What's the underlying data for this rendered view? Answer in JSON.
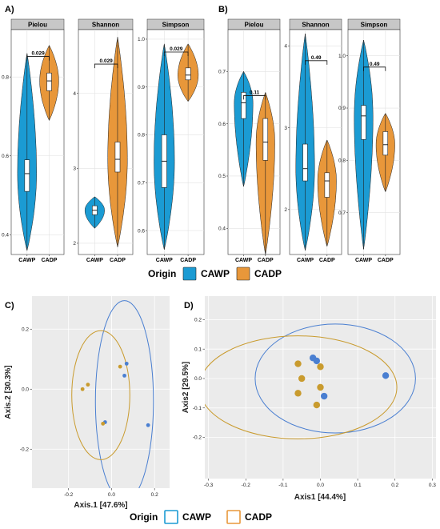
{
  "colors": {
    "CAWP": "#1b9bd3",
    "CADP": "#e8973a",
    "CAWP_ellipse": "#4a7fd1",
    "CADP_ellipse": "#c99b2e",
    "panel_bg": "#ebebeb",
    "strip_bg": "#c7c7c7"
  },
  "legend": {
    "title": "Origin",
    "items": [
      "CAWP",
      "CADP"
    ]
  },
  "chart_data": [
    {
      "id": "A",
      "label": "A)",
      "type": "violin",
      "categories": [
        "CAWP",
        "CADP"
      ],
      "facets": [
        {
          "strip": "Pielou",
          "ylim": [
            0.35,
            0.92
          ],
          "yticks": [
            0.4,
            0.6,
            0.8
          ],
          "ytick_labels": [
            "0.4",
            "0.6",
            "0.8"
          ],
          "groups": [
            {
              "name": "CAWP",
              "min": 0.36,
              "q1": 0.51,
              "median": 0.555,
              "q3": 0.59,
              "max": 0.86
            },
            {
              "name": "CADP",
              "min": 0.69,
              "q1": 0.765,
              "median": 0.79,
              "q3": 0.81,
              "max": 0.88
            }
          ],
          "pvalue": "0.029"
        },
        {
          "strip": "Shannon",
          "ylim": [
            1.85,
            4.85
          ],
          "yticks": [
            2,
            3,
            4
          ],
          "ytick_labels": [
            "2",
            "3",
            "4"
          ],
          "groups": [
            {
              "name": "CAWP",
              "min": 2.2,
              "q1": 2.38,
              "median": 2.44,
              "q3": 2.5,
              "max": 2.62
            },
            {
              "name": "CADP",
              "min": 1.95,
              "q1": 2.95,
              "median": 3.12,
              "q3": 3.35,
              "max": 4.75
            }
          ],
          "pvalue": "0.029"
        },
        {
          "strip": "Simpson",
          "ylim": [
            0.55,
            1.02
          ],
          "yticks": [
            0.6,
            0.7,
            0.8,
            0.9,
            1.0
          ],
          "ytick_labels": [
            "0.6",
            "0.7",
            "0.8",
            "0.9",
            "1.0"
          ],
          "groups": [
            {
              "name": "CAWP",
              "min": 0.56,
              "q1": 0.69,
              "median": 0.745,
              "q3": 0.8,
              "max": 0.99
            },
            {
              "name": "CADP",
              "min": 0.87,
              "q1": 0.915,
              "median": 0.925,
              "q3": 0.94,
              "max": 0.99
            }
          ],
          "pvalue": "0.029"
        }
      ]
    },
    {
      "id": "B",
      "label": "B)",
      "type": "violin",
      "categories": [
        "CAWP",
        "CADP"
      ],
      "facets": [
        {
          "strip": "Pielou",
          "ylim": [
            0.35,
            0.78
          ],
          "yticks": [
            0.4,
            0.5,
            0.6,
            0.7
          ],
          "ytick_labels": [
            "0.4",
            "0.5",
            "0.6",
            "0.7"
          ],
          "groups": [
            {
              "name": "CAWP",
              "min": 0.48,
              "q1": 0.61,
              "median": 0.64,
              "q3": 0.66,
              "max": 0.7
            },
            {
              "name": "CADP",
              "min": 0.35,
              "q1": 0.53,
              "median": 0.565,
              "q3": 0.61,
              "max": 0.66
            }
          ],
          "pvalue": "0.11"
        },
        {
          "strip": "Shannon",
          "ylim": [
            1.45,
            4.2
          ],
          "yticks": [
            2,
            3,
            4
          ],
          "ytick_labels": [
            "2",
            "3",
            "4"
          ],
          "groups": [
            {
              "name": "CAWP",
              "min": 1.5,
              "q1": 2.35,
              "median": 2.5,
              "q3": 2.8,
              "max": 4.15
            },
            {
              "name": "CADP",
              "min": 1.55,
              "q1": 2.15,
              "median": 2.35,
              "q3": 2.45,
              "max": 2.85
            }
          ],
          "pvalue": "0.49"
        },
        {
          "strip": "Simpson",
          "ylim": [
            0.62,
            1.05
          ],
          "yticks": [
            0.7,
            0.8,
            0.9,
            1.0
          ],
          "ytick_labels": [
            "0.7",
            "0.8",
            "0.9",
            "1.0"
          ],
          "groups": [
            {
              "name": "CAWP",
              "min": 0.63,
              "q1": 0.84,
              "median": 0.885,
              "q3": 0.905,
              "max": 1.03
            },
            {
              "name": "CADP",
              "min": 0.74,
              "q1": 0.81,
              "median": 0.83,
              "q3": 0.855,
              "max": 0.89
            }
          ],
          "pvalue": "0.49"
        }
      ]
    },
    {
      "id": "C",
      "label": "C)",
      "type": "scatter",
      "xlabel": "Axis.1   [47.6%]",
      "ylabel": "Axis.2   [30.3%]",
      "xlim": [
        -0.37,
        0.27
      ],
      "ylim": [
        -0.33,
        0.31
      ],
      "xticks": [
        -0.2,
        0.0,
        0.2
      ],
      "xtick_labels": [
        "-0.2",
        "0.0",
        "0.2"
      ],
      "yticks": [
        -0.2,
        0.0,
        0.2
      ],
      "ytick_labels": [
        "-0.2",
        "0.0",
        "0.2"
      ],
      "series": [
        {
          "name": "CAWP",
          "points": [
            [
              0.07,
              0.085
            ],
            [
              0.06,
              0.045
            ],
            [
              -0.03,
              -0.11
            ],
            [
              0.17,
              -0.12
            ]
          ],
          "ellipse": {
            "cx": 0.06,
            "cy": -0.04,
            "rx": 0.135,
            "ry": 0.335
          }
        },
        {
          "name": "CADP",
          "points": [
            [
              0.04,
              0.075
            ],
            [
              -0.11,
              0.015
            ],
            [
              -0.135,
              0.0
            ],
            [
              -0.04,
              -0.115
            ]
          ],
          "ellipse": {
            "cx": -0.05,
            "cy": -0.02,
            "rx": 0.135,
            "ry": 0.215
          }
        }
      ]
    },
    {
      "id": "D",
      "label": "D)",
      "type": "scatter",
      "xlabel": "Axis1   [44.4%]",
      "ylabel": "Axis2   [29.5%]",
      "xlim": [
        -0.31,
        0.31
      ],
      "ylim": [
        -0.34,
        0.28
      ],
      "xticks": [
        -0.3,
        -0.2,
        -0.1,
        0.0,
        0.1,
        0.2,
        0.3
      ],
      "xtick_labels": [
        "-0.3",
        "-0.2",
        "-0.1",
        "0.0",
        "0.1",
        "0.2",
        "0.3"
      ],
      "yticks": [
        -0.2,
        -0.1,
        0.0,
        0.1,
        0.2
      ],
      "ytick_labels": [
        "-0.2",
        "-0.1",
        "0.0",
        "0.1",
        "0.2"
      ],
      "series": [
        {
          "name": "CAWP",
          "points": [
            [
              -0.02,
              0.07
            ],
            [
              -0.01,
              0.06
            ],
            [
              0.01,
              -0.06
            ],
            [
              0.175,
              0.01
            ]
          ],
          "ellipse": {
            "cx": 0.04,
            "cy": 0.0,
            "rx": 0.215,
            "ry": 0.185
          }
        },
        {
          "name": "CADP",
          "points": [
            [
              -0.06,
              0.05
            ],
            [
              0.0,
              0.04
            ],
            [
              -0.05,
              0.0
            ],
            [
              0.0,
              -0.03
            ],
            [
              -0.06,
              -0.05
            ],
            [
              -0.01,
              -0.09
            ]
          ],
          "ellipse": {
            "cx": -0.06,
            "cy": -0.03,
            "rx": 0.265,
            "ry": 0.175
          }
        }
      ]
    }
  ]
}
